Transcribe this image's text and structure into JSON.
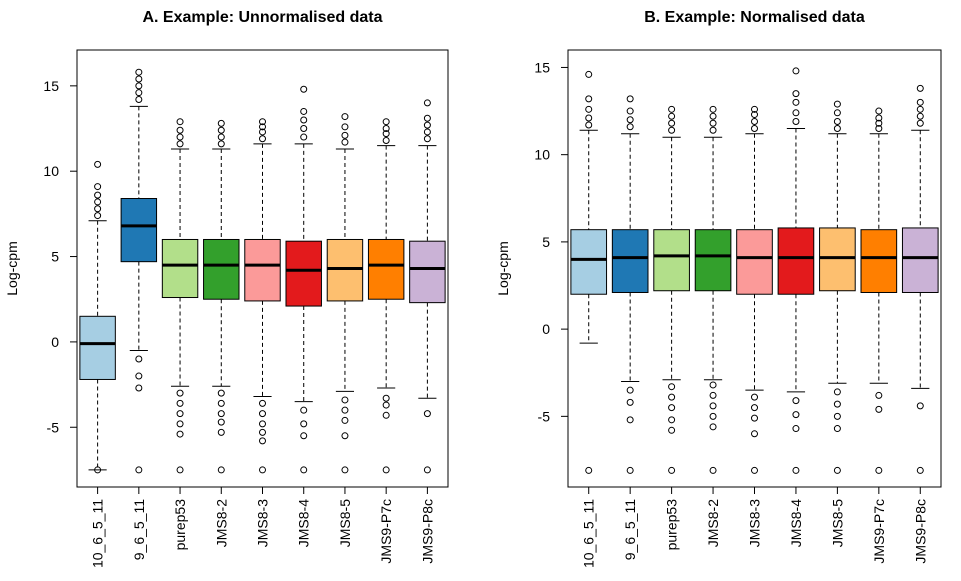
{
  "chart_data": [
    {
      "type": "box",
      "title": "A. Example: Unnormalised data",
      "ylabel": "Log-cpm",
      "categories": [
        "10_6_5_11",
        "9_6_5_11",
        "purep53",
        "JMS8-2",
        "JMS8-3",
        "JMS8-4",
        "JMS8-5",
        "JMS9-P7c",
        "JMS9-P8c"
      ],
      "colors": [
        "#a6cee3",
        "#1f78b4",
        "#b2df8a",
        "#33a02c",
        "#fb9a99",
        "#e31a1c",
        "#fdbf6f",
        "#ff7f00",
        "#cab2d6"
      ],
      "boxes": [
        {
          "whislo": -7.5,
          "q1": -2.2,
          "median": -0.1,
          "q3": 1.5,
          "whishi": 7.1,
          "fliers": [
            7.4,
            7.8,
            8.2,
            8.6,
            9.1,
            10.4,
            -7.5
          ]
        },
        {
          "whislo": -0.5,
          "q1": 4.7,
          "median": 6.8,
          "q3": 8.4,
          "whishi": 13.8,
          "fliers": [
            14.2,
            14.6,
            15.0,
            15.4,
            15.8,
            -1.0,
            -2.0,
            -2.7,
            -7.5
          ]
        },
        {
          "whislo": -2.6,
          "q1": 2.6,
          "median": 4.5,
          "q3": 6.0,
          "whishi": 11.3,
          "fliers": [
            11.6,
            12.0,
            12.4,
            12.9,
            -3.0,
            -3.6,
            -4.2,
            -4.8,
            -5.4,
            -7.5
          ]
        },
        {
          "whislo": -2.6,
          "q1": 2.5,
          "median": 4.5,
          "q3": 6.0,
          "whishi": 11.3,
          "fliers": [
            11.6,
            12.0,
            12.4,
            12.8,
            -3.0,
            -3.6,
            -4.2,
            -4.7,
            -5.3,
            -7.5
          ]
        },
        {
          "whislo": -3.2,
          "q1": 2.4,
          "median": 4.5,
          "q3": 6.0,
          "whishi": 11.6,
          "fliers": [
            11.9,
            12.3,
            12.6,
            12.9,
            -3.6,
            -4.2,
            -4.8,
            -5.3,
            -5.8,
            -7.5
          ]
        },
        {
          "whislo": -3.5,
          "q1": 2.1,
          "median": 4.2,
          "q3": 5.9,
          "whishi": 11.6,
          "fliers": [
            12.0,
            12.5,
            13.0,
            13.5,
            14.8,
            -4.0,
            -4.8,
            -5.5,
            -7.5
          ]
        },
        {
          "whislo": -2.9,
          "q1": 2.4,
          "median": 4.3,
          "q3": 6.0,
          "whishi": 11.3,
          "fliers": [
            11.7,
            12.1,
            12.6,
            13.2,
            -3.4,
            -4.0,
            -4.6,
            -5.5,
            -7.5
          ]
        },
        {
          "whislo": -2.7,
          "q1": 2.5,
          "median": 4.5,
          "q3": 6.0,
          "whishi": 11.5,
          "fliers": [
            11.8,
            12.2,
            12.5,
            12.9,
            -3.3,
            -3.7,
            -4.3,
            -7.5
          ]
        },
        {
          "whislo": -3.3,
          "q1": 2.3,
          "median": 4.3,
          "q3": 5.9,
          "whishi": 11.5,
          "fliers": [
            11.9,
            12.3,
            12.7,
            13.1,
            14.0,
            -4.2,
            -7.5
          ]
        }
      ],
      "ylim": [
        -8.5,
        17.1
      ],
      "yticks": [
        -5,
        0,
        5,
        10,
        15
      ]
    },
    {
      "type": "box",
      "title": "B. Example: Normalised data",
      "ylabel": "Log-cpm",
      "categories": [
        "10_6_5_11",
        "9_6_5_11",
        "purep53",
        "JMS8-2",
        "JMS8-3",
        "JMS8-4",
        "JMS8-5",
        "JMS9-P7c",
        "JMS9-P8c"
      ],
      "colors": [
        "#a6cee3",
        "#1f78b4",
        "#b2df8a",
        "#33a02c",
        "#fb9a99",
        "#e31a1c",
        "#fdbf6f",
        "#ff7f00",
        "#cab2d6"
      ],
      "boxes": [
        {
          "whislo": -0.8,
          "q1": 2.0,
          "median": 4.0,
          "q3": 5.7,
          "whishi": 11.4,
          "fliers": [
            11.7,
            12.1,
            12.6,
            13.2,
            14.6,
            -8.1
          ]
        },
        {
          "whislo": -3.0,
          "q1": 2.1,
          "median": 4.1,
          "q3": 5.7,
          "whishi": 11.2,
          "fliers": [
            11.6,
            12.0,
            12.5,
            13.2,
            -3.5,
            -4.2,
            -5.2,
            -8.1
          ]
        },
        {
          "whislo": -2.9,
          "q1": 2.2,
          "median": 4.2,
          "q3": 5.7,
          "whishi": 11.0,
          "fliers": [
            11.4,
            11.8,
            12.2,
            12.6,
            -3.3,
            -3.9,
            -4.5,
            -5.2,
            -5.8,
            -8.1
          ]
        },
        {
          "whislo": -2.9,
          "q1": 2.2,
          "median": 4.2,
          "q3": 5.7,
          "whishi": 11.0,
          "fliers": [
            11.4,
            11.8,
            12.2,
            12.6,
            -3.2,
            -3.8,
            -4.4,
            -5.0,
            -5.6,
            -8.1
          ]
        },
        {
          "whislo": -3.5,
          "q1": 2.0,
          "median": 4.1,
          "q3": 5.7,
          "whishi": 11.2,
          "fliers": [
            11.5,
            11.9,
            12.3,
            12.6,
            -3.9,
            -4.5,
            -5.1,
            -6.0,
            -8.1
          ]
        },
        {
          "whislo": -3.6,
          "q1": 2.0,
          "median": 4.1,
          "q3": 5.8,
          "whishi": 11.5,
          "fliers": [
            11.9,
            12.4,
            13.0,
            13.5,
            14.8,
            -4.1,
            -4.9,
            -5.7,
            -8.1
          ]
        },
        {
          "whislo": -3.1,
          "q1": 2.2,
          "median": 4.1,
          "q3": 5.8,
          "whishi": 11.2,
          "fliers": [
            11.5,
            11.9,
            12.4,
            12.9,
            -3.6,
            -4.3,
            -5.0,
            -5.7,
            -8.1
          ]
        },
        {
          "whislo": -3.1,
          "q1": 2.1,
          "median": 4.1,
          "q3": 5.7,
          "whishi": 11.2,
          "fliers": [
            11.5,
            11.8,
            12.1,
            12.5,
            -3.8,
            -4.6,
            -8.1
          ]
        },
        {
          "whislo": -3.4,
          "q1": 2.1,
          "median": 4.1,
          "q3": 5.8,
          "whishi": 11.4,
          "fliers": [
            11.8,
            12.2,
            12.6,
            13.0,
            13.8,
            -4.4,
            -8.1
          ]
        }
      ],
      "ylim": [
        -9.05,
        16.0
      ],
      "yticks": [
        -5,
        0,
        5,
        10,
        15
      ]
    }
  ]
}
